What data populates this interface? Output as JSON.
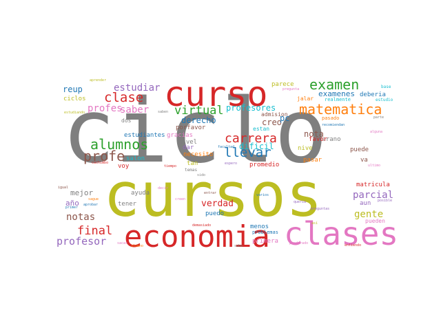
{
  "colors": {
    "gray": "#7f7f7f",
    "olive": "#bcbd22",
    "red": "#d62728",
    "pink": "#e377c2",
    "purple": "#9467bd",
    "teal": "#17becf",
    "blue": "#1f77b4",
    "green": "#2ca02c",
    "orange": "#ff7f0e",
    "brown": "#8c564b"
  },
  "words": [
    {
      "text": "ciclo",
      "color": "gray"
    },
    {
      "text": "cursos",
      "color": "olive"
    },
    {
      "text": "curso",
      "color": "red"
    },
    {
      "text": "economia",
      "color": "red"
    },
    {
      "text": "clases",
      "color": "pink"
    },
    {
      "text": "matematica",
      "color": "orange"
    },
    {
      "text": "examen",
      "color": "green"
    },
    {
      "text": "alumnos",
      "color": "green"
    },
    {
      "text": "profe",
      "color": "brown"
    },
    {
      "text": "clase",
      "color": "red"
    },
    {
      "text": "llevar",
      "color": "blue"
    },
    {
      "text": "carrera",
      "color": "red"
    },
    {
      "text": "virtual",
      "color": "green"
    },
    {
      "text": "profes",
      "color": "pink"
    },
    {
      "text": "saber",
      "color": "pink"
    },
    {
      "text": "estudiar",
      "color": "purple"
    },
    {
      "text": "reup",
      "color": "blue"
    },
    {
      "text": "profesores",
      "color": "teal"
    },
    {
      "text": "examenes",
      "color": "blue"
    },
    {
      "text": "final",
      "color": "red"
    },
    {
      "text": "profesor",
      "color": "purple"
    },
    {
      "text": "notas",
      "color": "brown"
    },
    {
      "text": "gente",
      "color": "olive"
    },
    {
      "text": "parcial",
      "color": "purple"
    },
    {
      "text": "verdad",
      "color": "red"
    },
    {
      "text": "derecho",
      "color": "blue"
    },
    {
      "text": "dificil",
      "color": "teal"
    },
    {
      "text": "creo",
      "color": "brown"
    },
    {
      "text": "nota",
      "color": "brown"
    },
    {
      "text": "pc",
      "color": "blue"
    },
    {
      "text": "mejor",
      "color": "gray"
    },
    {
      "text": "año",
      "color": "purple"
    },
    {
      "text": "matricula",
      "color": "red"
    },
    {
      "text": "promedio",
      "color": "red"
    },
    {
      "text": "deberia",
      "color": "blue"
    },
    {
      "text": "ciclos",
      "color": "olive"
    },
    {
      "text": "parece",
      "color": "olive"
    },
    {
      "text": "admision",
      "color": "brown"
    },
    {
      "text": "estudiantes",
      "color": "blue"
    },
    {
      "text": "gracias",
      "color": "pink"
    },
    {
      "text": "necesito",
      "color": "orange"
    },
    {
      "text": "nivel",
      "color": "gray"
    },
    {
      "text": "dar",
      "color": "purple"
    },
    {
      "text": "tan",
      "color": "olive"
    },
    {
      "text": "salon",
      "color": "teal"
    },
    {
      "text": "voy",
      "color": "red"
    },
    {
      "text": "ayuda",
      "color": "gray"
    },
    {
      "text": "tener",
      "color": "gray"
    },
    {
      "text": "puedo",
      "color": "blue"
    },
    {
      "text": "menos",
      "color": "blue"
    },
    {
      "text": "problemas",
      "color": "blue"
    },
    {
      "text": "primera",
      "color": "pink"
    },
    {
      "text": "puede",
      "color": "brown"
    },
    {
      "text": "pueden",
      "color": "pink"
    },
    {
      "text": "verano",
      "color": "gray"
    },
    {
      "text": "favor",
      "color": "red"
    },
    {
      "text": "nive",
      "color": "olive"
    },
    {
      "text": "pasar",
      "color": "orange"
    },
    {
      "text": "va",
      "color": "brown"
    },
    {
      "text": "aun",
      "color": "purple"
    },
    {
      "text": "porfavor",
      "color": "brown"
    },
    {
      "text": "estan",
      "color": "teal"
    },
    {
      "text": "dos",
      "color": "gray"
    },
    {
      "text": "jalar",
      "color": "orange"
    },
    {
      "text": "realmente",
      "color": "teal"
    },
    {
      "text": "pasado",
      "color": "orange"
    },
    {
      "text": "estudio",
      "color": "teal"
    },
    {
      "text": "base",
      "color": "teal"
    },
    {
      "text": "aprender",
      "color": "olive"
    },
    {
      "text": "pregunta",
      "color": "pink"
    },
    {
      "text": "estudiando",
      "color": "olive"
    },
    {
      "text": "saben",
      "color": "gray"
    },
    {
      "text": "recomiendan",
      "color": "blue"
    },
    {
      "text": "alguna",
      "color": "pink"
    },
    {
      "text": "posible",
      "color": "purple"
    },
    {
      "text": "ultimo",
      "color": "pink"
    },
    {
      "text": "facultad",
      "color": "blue"
    },
    {
      "text": "espero",
      "color": "purple"
    },
    {
      "text": "tiempo",
      "color": "red"
    },
    {
      "text": "sido",
      "color": "gray"
    },
    {
      "text": "temas",
      "color": "gray"
    },
    {
      "text": "entrar",
      "color": "brown"
    },
    {
      "text": "varios",
      "color": "blue"
    },
    {
      "text": "quería",
      "color": "purple"
    },
    {
      "text": "preguntas",
      "color": "purple"
    },
    {
      "text": "cachimbo",
      "color": "red"
    },
    {
      "text": "igual",
      "color": "brown"
    },
    {
      "text": "sague",
      "color": "orange"
    },
    {
      "text": "aprobar",
      "color": "blue"
    },
    {
      "text": "primer",
      "color": "blue"
    },
    {
      "text": "decir",
      "color": "pink"
    },
    {
      "text": "creen",
      "color": "pink"
    },
    {
      "text": "demasiado",
      "color": "red"
    },
    {
      "text": "sabe",
      "color": "gray"
    },
    {
      "text": "alumno",
      "color": "orange"
    },
    {
      "text": "sacar",
      "color": "pink"
    },
    {
      "text": "ponderado",
      "color": "pink"
    },
    {
      "text": "entiendo",
      "color": "red"
    },
    {
      "text": "así",
      "color": "olive"
    },
    {
      "text": "parte",
      "color": "gray"
    }
  ]
}
